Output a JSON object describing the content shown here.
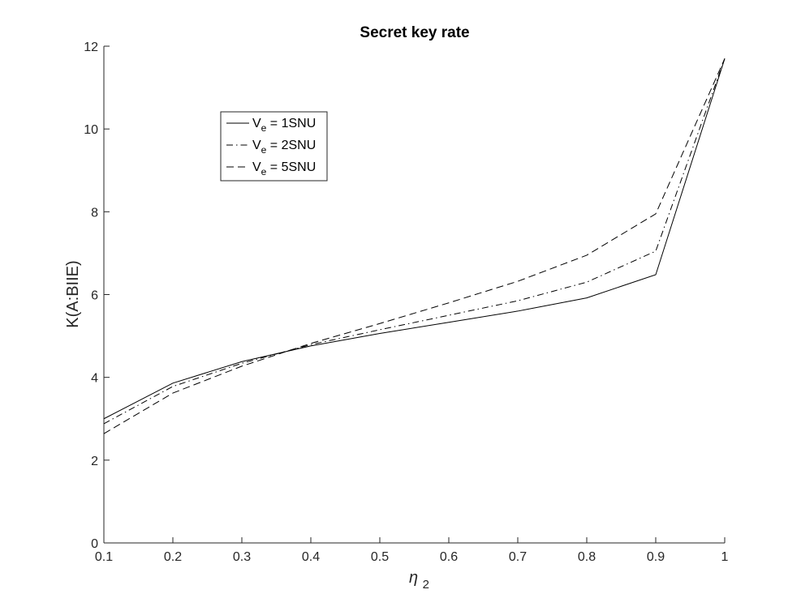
{
  "chart_data": {
    "type": "line",
    "title": "Secret key rate",
    "xlabel_symbol": "η",
    "xlabel_subscript": "2",
    "ylabel": "K(A:BIIE)",
    "xlim": [
      0.1,
      1
    ],
    "ylim": [
      0,
      12
    ],
    "xticks": [
      "0.1",
      "0.2",
      "0.3",
      "0.4",
      "0.5",
      "0.6",
      "0.7",
      "0.8",
      "0.9",
      "1"
    ],
    "yticks": [
      "0",
      "2",
      "4",
      "6",
      "8",
      "10",
      "12"
    ],
    "x": [
      0.1,
      0.2,
      0.3,
      0.4,
      0.5,
      0.6,
      0.7,
      0.8,
      0.9,
      1.0
    ],
    "grid": false,
    "legend_position": "top-left",
    "series": [
      {
        "name_main": "V",
        "name_sub": "e",
        "name_rest": " = 1SNU",
        "line_style": "solid",
        "values": [
          3.0,
          3.86,
          4.38,
          4.76,
          5.06,
          5.33,
          5.6,
          5.92,
          6.48,
          11.7
        ]
      },
      {
        "name_main": "V",
        "name_sub": "e",
        "name_rest": " = 2SNU",
        "line_style": "dash-dot",
        "values": [
          2.88,
          3.78,
          4.34,
          4.79,
          5.15,
          5.5,
          5.85,
          6.3,
          7.05,
          11.7
        ]
      },
      {
        "name_main": "V",
        "name_sub": "e",
        "name_rest": " = 5SNU",
        "line_style": "dashed",
        "values": [
          2.64,
          3.62,
          4.27,
          4.82,
          5.3,
          5.8,
          6.32,
          6.95,
          7.95,
          11.7
        ]
      }
    ]
  }
}
